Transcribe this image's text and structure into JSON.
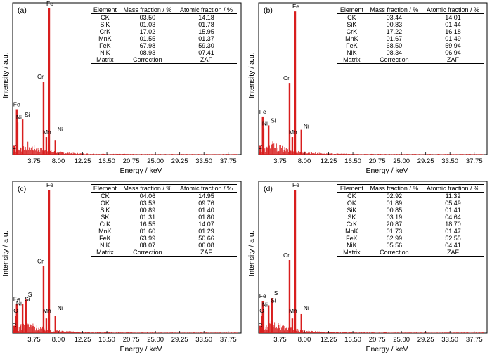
{
  "chart_data": [
    {
      "type": "bar",
      "panel_label": "(a)",
      "xlabel": "Energy / keV",
      "ylabel": "Intensity / a.u.",
      "x_ticks": [
        "3.75",
        "8.00",
        "12.25",
        "16.50",
        "20.75",
        "25.00",
        "29.25",
        "33.50",
        "37.75"
      ],
      "xlim": [
        0,
        40
      ],
      "peaks": [
        {
          "label": "C",
          "x": 0.28,
          "y": 0.06
        },
        {
          "label": "Fe",
          "x": 0.71,
          "y": 0.31
        },
        {
          "label": "Ni",
          "x": 0.85,
          "y": 0.22
        },
        {
          "label": "Si",
          "x": 1.74,
          "y": 0.24
        },
        {
          "label": "Cr",
          "x": 5.41,
          "y": 0.5
        },
        {
          "label": "Mn",
          "x": 5.9,
          "y": 0.12
        },
        {
          "label": "Fe",
          "x": 6.4,
          "y": 1.0
        },
        {
          "label": "Ni",
          "x": 7.48,
          "y": 0.1
        }
      ],
      "table": {
        "headers": [
          "Element",
          "Mass fraction / %",
          "Atomic fraction / %"
        ],
        "rows": [
          {
            "element": "CK",
            "mass": "03.50",
            "atomic": "14.18"
          },
          {
            "element": "SiK",
            "mass": "01.03",
            "atomic": "01.78"
          },
          {
            "element": "CrK",
            "mass": "17.02",
            "atomic": "15.95"
          },
          {
            "element": "MnK",
            "mass": "01.55",
            "atomic": "01.37"
          },
          {
            "element": "FeK",
            "mass": "67.98",
            "atomic": "59.30"
          },
          {
            "element": "NiK",
            "mass": "08.93",
            "atomic": "07.41"
          }
        ],
        "footer": {
          "element": "Matrix",
          "mass": "Correction",
          "atomic": "ZAF"
        }
      },
      "bar_color": "#d81e1e"
    },
    {
      "type": "bar",
      "panel_label": "(b)",
      "xlabel": "Energy / keV",
      "ylabel": "Intensity / a.u.",
      "x_ticks": [
        "3.75",
        "8.00",
        "12.25",
        "16.50",
        "20.75",
        "25.00",
        "29.25",
        "33.50",
        "37.75"
      ],
      "xlim": [
        0,
        40
      ],
      "peaks": [
        {
          "label": "C",
          "x": 0.28,
          "y": 0.06
        },
        {
          "label": "Fe",
          "x": 0.71,
          "y": 0.26
        },
        {
          "label": "Ni",
          "x": 0.85,
          "y": 0.18
        },
        {
          "label": "Si",
          "x": 1.74,
          "y": 0.2
        },
        {
          "label": "Cr",
          "x": 5.41,
          "y": 0.49
        },
        {
          "label": "Mn",
          "x": 5.9,
          "y": 0.12
        },
        {
          "label": "Fe",
          "x": 6.4,
          "y": 0.98
        },
        {
          "label": "Ni",
          "x": 7.48,
          "y": 0.17
        }
      ],
      "table": {
        "headers": [
          "Element",
          "Mass fraction / %",
          "Atomic fraction / %"
        ],
        "rows": [
          {
            "element": "CK",
            "mass": "03.44",
            "atomic": "14.01"
          },
          {
            "element": "SiK",
            "mass": "00.83",
            "atomic": "01.44"
          },
          {
            "element": "CrK",
            "mass": "17.22",
            "atomic": "16.18"
          },
          {
            "element": "MnK",
            "mass": "01.67",
            "atomic": "01.49"
          },
          {
            "element": "FeK",
            "mass": "68.50",
            "atomic": "59.94"
          },
          {
            "element": "NiK",
            "mass": "08.34",
            "atomic": "06.94"
          }
        ],
        "footer": {
          "element": "Matrix",
          "mass": "Correction",
          "atomic": "ZAF"
        }
      },
      "bar_color": "#d81e1e"
    },
    {
      "type": "bar",
      "panel_label": "(c)",
      "xlabel": "Energy / keV",
      "ylabel": "Intensity / a.u.",
      "x_ticks": [
        "3.75",
        "8.00",
        "12.25",
        "16.50",
        "20.75",
        "25.00",
        "29.25",
        "33.50",
        "37.75"
      ],
      "xlim": [
        0,
        40
      ],
      "peaks": [
        {
          "label": "C",
          "x": 0.28,
          "y": 0.05
        },
        {
          "label": "O",
          "x": 0.52,
          "y": 0.12
        },
        {
          "label": "Fe",
          "x": 0.71,
          "y": 0.2
        },
        {
          "label": "Ni",
          "x": 0.85,
          "y": 0.17
        },
        {
          "label": "Si",
          "x": 1.74,
          "y": 0.2
        },
        {
          "label": "S",
          "x": 2.31,
          "y": 0.23
        },
        {
          "label": "Cr",
          "x": 5.41,
          "y": 0.46
        },
        {
          "label": "Mn",
          "x": 5.9,
          "y": 0.1
        },
        {
          "label": "Fe",
          "x": 6.4,
          "y": 0.98
        },
        {
          "label": "Ni",
          "x": 7.48,
          "y": 0.12
        }
      ],
      "table": {
        "headers": [
          "Element",
          "Mass fraction / %",
          "Atomic fraction / %"
        ],
        "rows": [
          {
            "element": "CK",
            "mass": "04.06",
            "atomic": "14.95"
          },
          {
            "element": "OK",
            "mass": "03.53",
            "atomic": "09.76"
          },
          {
            "element": "SiK",
            "mass": "00.89",
            "atomic": "01.40"
          },
          {
            "element": "SK",
            "mass": "01.31",
            "atomic": "01.80"
          },
          {
            "element": "CrK",
            "mass": "16.55",
            "atomic": "14.07"
          },
          {
            "element": "MnK",
            "mass": "01.60",
            "atomic": "01.29"
          },
          {
            "element": "FeK",
            "mass": "63.99",
            "atomic": "50.66"
          },
          {
            "element": "NiK",
            "mass": "08.07",
            "atomic": "06.08"
          }
        ],
        "footer": {
          "element": "Matrix",
          "mass": "Correction",
          "atomic": "ZAF"
        }
      },
      "bar_color": "#d81e1e"
    },
    {
      "type": "bar",
      "panel_label": "(d)",
      "xlabel": "Energy / keV",
      "ylabel": "Intensity / a.u.",
      "x_ticks": [
        "3.75",
        "8.00",
        "12.25",
        "16.50",
        "20.75",
        "25.00",
        "29.25",
        "33.50",
        "37.75"
      ],
      "xlim": [
        0,
        40
      ],
      "peaks": [
        {
          "label": "C",
          "x": 0.28,
          "y": 0.05
        },
        {
          "label": "O",
          "x": 0.52,
          "y": 0.12
        },
        {
          "label": "Fe",
          "x": 0.71,
          "y": 0.22
        },
        {
          "label": "Ni",
          "x": 0.85,
          "y": 0.16
        },
        {
          "label": "Si",
          "x": 1.74,
          "y": 0.19
        },
        {
          "label": "S",
          "x": 2.31,
          "y": 0.24
        },
        {
          "label": "Cr",
          "x": 5.41,
          "y": 0.5
        },
        {
          "label": "Mn",
          "x": 5.9,
          "y": 0.1
        },
        {
          "label": "Fe",
          "x": 6.4,
          "y": 0.98
        },
        {
          "label": "Ni",
          "x": 7.48,
          "y": 0.13
        }
      ],
      "table": {
        "headers": [
          "Element",
          "Mass fraction / %",
          "Atomic fraction / %"
        ],
        "rows": [
          {
            "element": "CK",
            "mass": "02.92",
            "atomic": "11.32"
          },
          {
            "element": "OK",
            "mass": "01.89",
            "atomic": "05.49"
          },
          {
            "element": "SiK",
            "mass": "00.85",
            "atomic": "01.41"
          },
          {
            "element": "SK",
            "mass": "03.19",
            "atomic": "04.64"
          },
          {
            "element": "CrK",
            "mass": "20.87",
            "atomic": "18.70"
          },
          {
            "element": "MnK",
            "mass": "01.73",
            "atomic": "01.47"
          },
          {
            "element": "FeK",
            "mass": "62.99",
            "atomic": "52.55"
          },
          {
            "element": "NiK",
            "mass": "05.56",
            "atomic": "04.41"
          }
        ],
        "footer": {
          "element": "Matrix",
          "mass": "Correction",
          "atomic": "ZAF"
        }
      },
      "bar_color": "#d81e1e"
    }
  ]
}
